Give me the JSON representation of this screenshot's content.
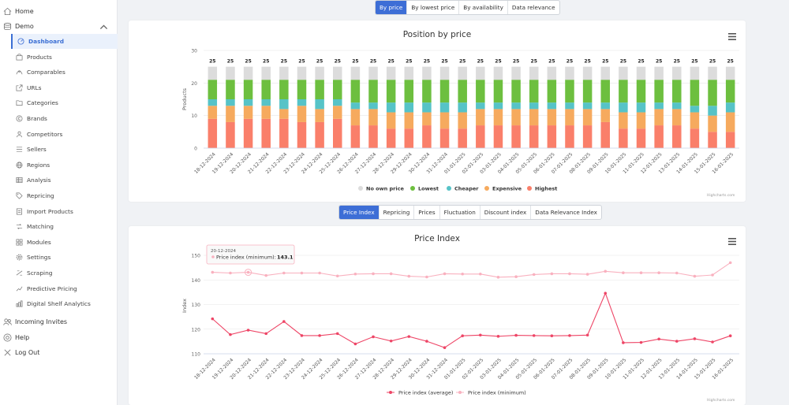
{
  "nav": {
    "home": "Home",
    "demo": "Demo",
    "items": [
      {
        "label": "Dashboard",
        "icon": "dashboard-icon",
        "active": true
      },
      {
        "label": "Products",
        "icon": "bag-icon"
      },
      {
        "label": "Comparables",
        "icon": "compare-icon"
      },
      {
        "label": "URLs",
        "icon": "external-link-icon"
      },
      {
        "label": "Categories",
        "icon": "folder-icon"
      },
      {
        "label": "Brands",
        "icon": "copyright-icon"
      },
      {
        "label": "Competitors",
        "icon": "competitors-icon"
      },
      {
        "label": "Sellers",
        "icon": "sellers-icon"
      },
      {
        "label": "Regions",
        "icon": "globe-icon"
      },
      {
        "label": "Analysis",
        "icon": "table-icon"
      },
      {
        "label": "Repricing",
        "icon": "tag-icon"
      },
      {
        "label": "Import Products",
        "icon": "import-icon"
      },
      {
        "label": "Matching",
        "icon": "matching-icon"
      },
      {
        "label": "Modules",
        "icon": "modules-icon"
      },
      {
        "label": "Settings",
        "icon": "gear-icon"
      },
      {
        "label": "Scraping",
        "icon": "scraping-icon"
      },
      {
        "label": "Predictive Pricing",
        "icon": "trend-icon"
      },
      {
        "label": "Digital Shelf Analytics",
        "icon": "shelf-icon"
      }
    ],
    "incoming_invites": "Incoming Invites",
    "help": "Help",
    "logout": "Log Out"
  },
  "top_tabs": [
    "By price",
    "By lowest price",
    "By availability",
    "Data relevance"
  ],
  "mid_tabs": [
    "Price Index",
    "Repricing",
    "Prices",
    "Fluctuation",
    "Discount index",
    "Data Relevance Index"
  ],
  "credits": "Highcharts.com",
  "colors": {
    "no_own": "#dcdcdc",
    "lowest": "#6dbf3f",
    "cheaper": "#56c3c7",
    "expensive": "#f6aa5e",
    "highest": "#fa7f6a",
    "avg": "#ee4566",
    "min": "#f9b1bf",
    "accent": "#3d6ed6"
  },
  "chart_data": [
    {
      "type": "bar",
      "stacked": true,
      "title": "Position by price",
      "ylabel": "Products",
      "ylim": [
        0,
        30
      ],
      "yticks": [
        "0",
        "10",
        "20",
        "30"
      ],
      "categories": [
        "18-12-2024",
        "19-12-2024",
        "20-12-2024",
        "21-12-2024",
        "22-12-2024",
        "23-12-2024",
        "24-12-2024",
        "25-12-2024",
        "26-12-2024",
        "27-12-2024",
        "28-12-2024",
        "29-12-2024",
        "30-12-2024",
        "31-12-2024",
        "01-01-2025",
        "02-01-2025",
        "03-01-2025",
        "04-01-2025",
        "05-01-2025",
        "06-01-2025",
        "07-01-2025",
        "08-01-2025",
        "09-01-2025",
        "10-01-2025",
        "11-01-2025",
        "12-01-2025",
        "13-01-2025",
        "14-01-2025",
        "15-01-2025",
        "16-01-2025"
      ],
      "totals": [
        25,
        25,
        25,
        25,
        25,
        25,
        25,
        25,
        25,
        25,
        25,
        25,
        25,
        25,
        25,
        25,
        25,
        25,
        25,
        25,
        25,
        25,
        25,
        25,
        25,
        25,
        25,
        25,
        25,
        25
      ],
      "series": [
        {
          "name": "No own price",
          "color": "#dcdcdc",
          "values": [
            4,
            4,
            4,
            4,
            4,
            4,
            4,
            4,
            4,
            4,
            4,
            4,
            4,
            4,
            4,
            4,
            4,
            4,
            4,
            4,
            4,
            4,
            4,
            4,
            4,
            4,
            4,
            4,
            4,
            4
          ]
        },
        {
          "name": "Lowest",
          "color": "#6dbf3f",
          "values": [
            6,
            6,
            6,
            6,
            6,
            6,
            6,
            6,
            7,
            7,
            7,
            7,
            7,
            7,
            7,
            7,
            7,
            7,
            7,
            7,
            7,
            7,
            7,
            7,
            7,
            7,
            7,
            8,
            8,
            7
          ]
        },
        {
          "name": "Cheaper",
          "color": "#56c3c7",
          "values": [
            2,
            2,
            2,
            2,
            3,
            2,
            3,
            2,
            2,
            2,
            3,
            3,
            3,
            3,
            3,
            2,
            2,
            2,
            2,
            2,
            2,
            2,
            2,
            3,
            3,
            2,
            2,
            2,
            3,
            3
          ]
        },
        {
          "name": "Expensive",
          "color": "#f6aa5e",
          "values": [
            4,
            5,
            4,
            4,
            3,
            5,
            4,
            4,
            5,
            5,
            5,
            5,
            4,
            5,
            5,
            5,
            5,
            5,
            5,
            5,
            5,
            5,
            4,
            5,
            5,
            5,
            5,
            5,
            5,
            6
          ]
        },
        {
          "name": "Highest",
          "color": "#fa7f6a",
          "values": [
            9,
            8,
            9,
            9,
            9,
            8,
            8,
            9,
            7,
            7,
            6,
            6,
            7,
            6,
            6,
            7,
            7,
            7,
            7,
            7,
            7,
            7,
            8,
            6,
            6,
            7,
            7,
            6,
            5,
            5
          ]
        }
      ]
    },
    {
      "type": "line",
      "title": "Price Index",
      "ylabel": "Index",
      "ylim": [
        110,
        150
      ],
      "yticks": [
        "110",
        "120",
        "130",
        "140",
        "150"
      ],
      "categories": [
        "18-12-2024",
        "19-12-2024",
        "20-12-2024",
        "21-12-2024",
        "22-12-2024",
        "23-12-2024",
        "24-12-2024",
        "25-12-2024",
        "26-12-2024",
        "27-12-2024",
        "28-12-2024",
        "29-12-2024",
        "30-12-2024",
        "31-12-2024",
        "01-01-2025",
        "02-01-2025",
        "03-01-2025",
        "04-01-2025",
        "05-01-2025",
        "06-01-2025",
        "07-01-2025",
        "08-01-2025",
        "09-01-2025",
        "10-01-2025",
        "11-01-2025",
        "12-01-2025",
        "13-01-2025",
        "14-01-2025",
        "15-01-2025",
        "16-01-2025"
      ],
      "series": [
        {
          "name": "Price index (average)",
          "color": "#ee4566",
          "values": [
            124.2,
            117.8,
            119.6,
            118.2,
            123.1,
            117.4,
            117.4,
            118.2,
            114,
            116.9,
            115.2,
            117,
            115.1,
            112.5,
            117.3,
            117.6,
            117.1,
            117.5,
            117.4,
            117.3,
            117.4,
            117.6,
            134.6,
            114.5,
            114.6,
            116,
            115.1,
            116.1,
            114.8,
            117.3
          ]
        },
        {
          "name": "Price index (minimum)",
          "color": "#f9b1bf",
          "values": [
            143.1,
            142.8,
            143.1,
            141.8,
            142.8,
            142.8,
            142.8,
            141.6,
            142.4,
            142.5,
            142.5,
            141.5,
            141.2,
            142.5,
            142.4,
            142.4,
            141.1,
            141.3,
            142.2,
            142.5,
            142.5,
            142.3,
            143.5,
            142.9,
            142.9,
            142.9,
            142.8,
            141.5,
            142,
            147
          ]
        }
      ],
      "tooltip": {
        "date": "20-12-2024",
        "label": "Price index (minimum):",
        "value": "143.1"
      }
    }
  ]
}
